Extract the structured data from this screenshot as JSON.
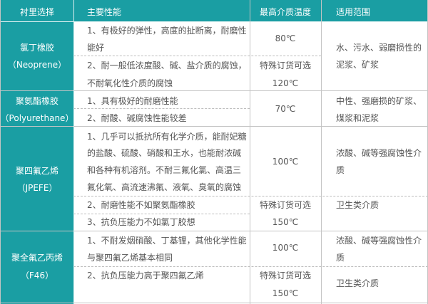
{
  "colors": {
    "header": "#1a9ea3",
    "text": "#555555"
  },
  "headers": [
    "衬里选择",
    "主要性能",
    "最高介质温度",
    "适用范围"
  ],
  "rows": [
    {
      "name": [
        "氯丁橡胶",
        "（Neoprene）"
      ],
      "perf": [
        "1、有极好的弹性，高度的扯断离，耐磨性",
        "能好",
        "2、耐一般低浓度酸、碱、盐介质的腐蚀，",
        "不耐氧化性介质的腐蚀"
      ],
      "temp": [
        "80℃",
        "特殊订货可选",
        "120℃"
      ],
      "range": [
        "水、污水、弱磨损性的",
        "泥浆、矿浆"
      ]
    },
    {
      "name": [
        "聚氨酯橡胶",
        "（Polyurethane）"
      ],
      "perf": [
        "1、具有极好的耐磨性能",
        "2、耐酸、碱腐蚀性能较差"
      ],
      "temp": [
        "70℃"
      ],
      "range": [
        "中性、强磨损的矿浆、",
        "煤浆和泥浆"
      ]
    },
    {
      "name": [
        "聚四氟乙烯",
        "（JPEFE）"
      ],
      "perf": [
        "1、几乎可以抵抗所有化学介质，能耐妃糖",
        "的盐酸、硫酸、硝酸和王水，也能耐浓碱",
        "和各种有机溶剂。不耐三氟化氯、高温三",
        "氟化氧、高流速沸氟、液氧、臭氧的腐蚀",
        "2、耐磨性能不如聚氨酯橡胶",
        "3、抗负压能力不如氯丁胶想"
      ],
      "temp": [
        "100℃",
        "特殊订货可选",
        "150℃"
      ],
      "range": [
        "浓酸、碱等强腐蚀性介",
        "质",
        "卫生类介质"
      ]
    },
    {
      "name": [
        "聚全氟乙丙烯",
        "（F46）"
      ],
      "perf": [
        "1、不耐发烟硝酸、丁基锂，其他化学性能",
        "与聚四氟乙烯基本相同",
        "2、抗负压能力高于聚四氟乙烯"
      ],
      "temp": [
        "100℃",
        "特殊订货可选",
        "150℃"
      ],
      "range": [
        "浓酸、碱等强腐蚀性介",
        "质",
        "卫生类介质"
      ]
    }
  ]
}
